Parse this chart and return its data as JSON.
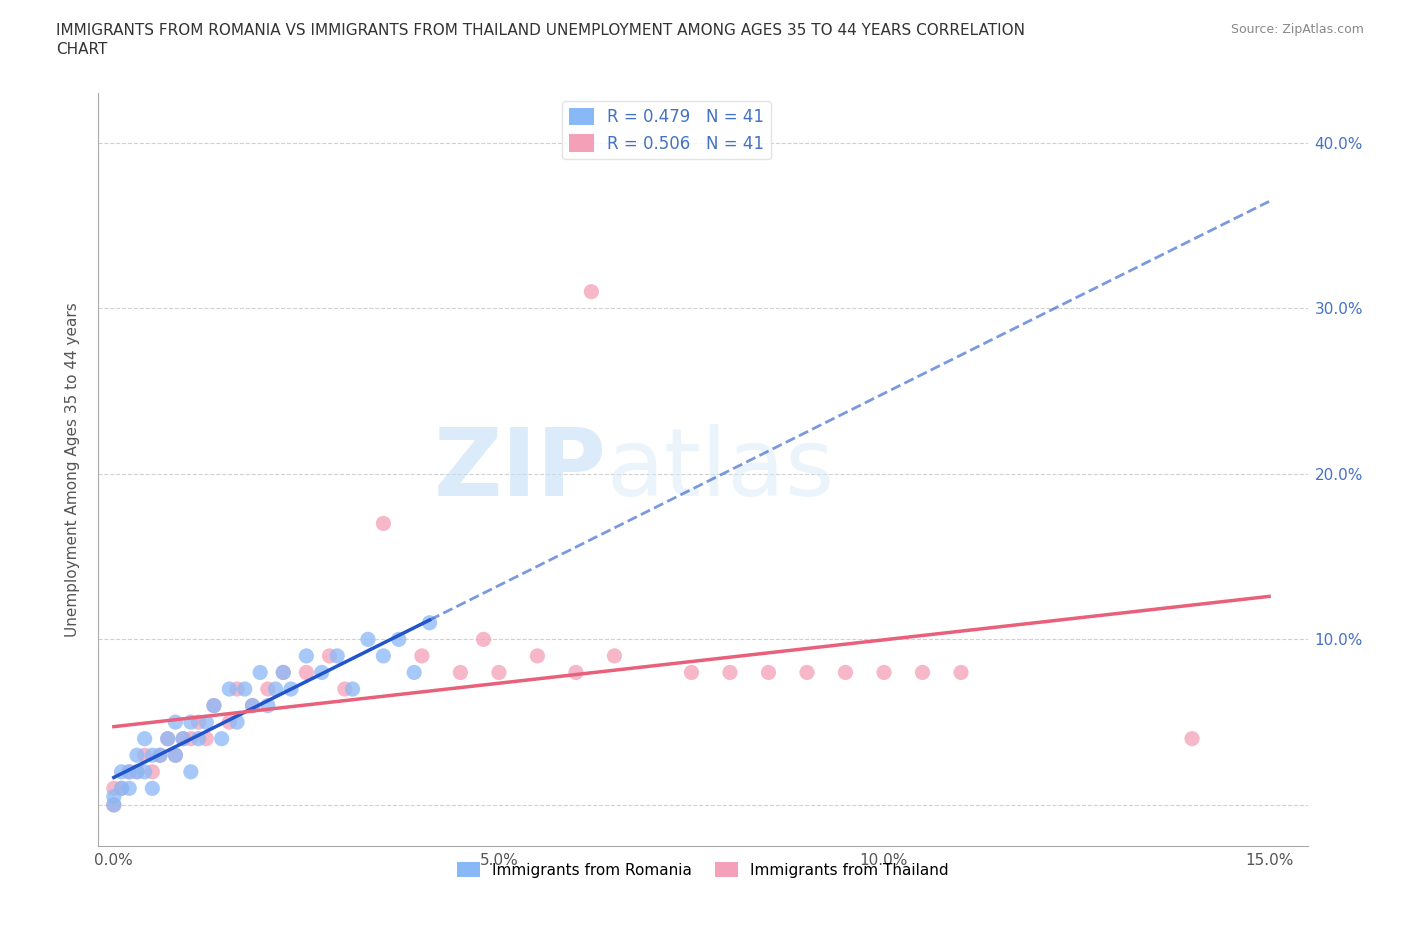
{
  "title_line1": "IMMIGRANTS FROM ROMANIA VS IMMIGRANTS FROM THAILAND UNEMPLOYMENT AMONG AGES 35 TO 44 YEARS CORRELATION",
  "title_line2": "CHART",
  "source": "Source: ZipAtlas.com",
  "ylabel": "Unemployment Among Ages 35 to 44 years",
  "xlim": [
    -0.002,
    0.155
  ],
  "ylim": [
    -0.025,
    0.43
  ],
  "xticks": [
    0.0,
    0.05,
    0.1,
    0.15
  ],
  "xticklabels": [
    "0.0%",
    "5.0%",
    "10.0%",
    "15.0%"
  ],
  "yticks": [
    0.0,
    0.1,
    0.2,
    0.3,
    0.4
  ],
  "right_yticklabels": [
    "",
    "10.0%",
    "20.0%",
    "30.0%",
    "40.0%"
  ],
  "romania_color": "#89b8f7",
  "thailand_color": "#f4a0b8",
  "romania_line_color": "#2255cc",
  "thailand_line_color": "#e8607a",
  "watermark_zip": "ZIP",
  "watermark_atlas": "atlas",
  "legend_romania": "R = 0.479   N = 41",
  "legend_thailand": "R = 0.506   N = 41",
  "romania_x": [
    0.0,
    0.0,
    0.001,
    0.001,
    0.002,
    0.002,
    0.003,
    0.003,
    0.004,
    0.004,
    0.005,
    0.005,
    0.006,
    0.007,
    0.008,
    0.008,
    0.009,
    0.01,
    0.01,
    0.011,
    0.012,
    0.013,
    0.014,
    0.015,
    0.016,
    0.017,
    0.018,
    0.019,
    0.02,
    0.021,
    0.022,
    0.023,
    0.025,
    0.027,
    0.029,
    0.031,
    0.033,
    0.035,
    0.037,
    0.039,
    0.041
  ],
  "romania_y": [
    0.0,
    0.005,
    0.01,
    0.02,
    0.01,
    0.02,
    0.02,
    0.03,
    0.02,
    0.04,
    0.01,
    0.03,
    0.03,
    0.04,
    0.03,
    0.05,
    0.04,
    0.02,
    0.05,
    0.04,
    0.05,
    0.06,
    0.04,
    0.07,
    0.05,
    0.07,
    0.06,
    0.08,
    0.06,
    0.07,
    0.08,
    0.07,
    0.09,
    0.08,
    0.09,
    0.07,
    0.1,
    0.09,
    0.1,
    0.08,
    0.11
  ],
  "thailand_x": [
    0.0,
    0.0,
    0.001,
    0.002,
    0.003,
    0.004,
    0.005,
    0.006,
    0.007,
    0.008,
    0.009,
    0.01,
    0.011,
    0.012,
    0.013,
    0.015,
    0.016,
    0.018,
    0.02,
    0.022,
    0.025,
    0.028,
    0.03,
    0.035,
    0.04,
    0.045,
    0.048,
    0.05,
    0.055,
    0.06,
    0.062,
    0.065,
    0.075,
    0.08,
    0.085,
    0.09,
    0.095,
    0.1,
    0.105,
    0.11,
    0.14
  ],
  "thailand_y": [
    0.0,
    0.01,
    0.01,
    0.02,
    0.02,
    0.03,
    0.02,
    0.03,
    0.04,
    0.03,
    0.04,
    0.04,
    0.05,
    0.04,
    0.06,
    0.05,
    0.07,
    0.06,
    0.07,
    0.08,
    0.08,
    0.09,
    0.07,
    0.17,
    0.09,
    0.08,
    0.1,
    0.08,
    0.09,
    0.08,
    0.31,
    0.09,
    0.08,
    0.08,
    0.08,
    0.08,
    0.08,
    0.08,
    0.08,
    0.08,
    0.04
  ],
  "grid_color": "#cccccc",
  "background_color": "#ffffff",
  "romania_trend_x": [
    0.0,
    0.041
  ],
  "romania_trend_y_intercept": 0.012,
  "romania_trend_slope": 2.4,
  "thailand_trend_x": [
    0.0,
    0.15
  ],
  "thailand_trend_y_intercept": 0.015,
  "thailand_trend_slope": 1.38
}
